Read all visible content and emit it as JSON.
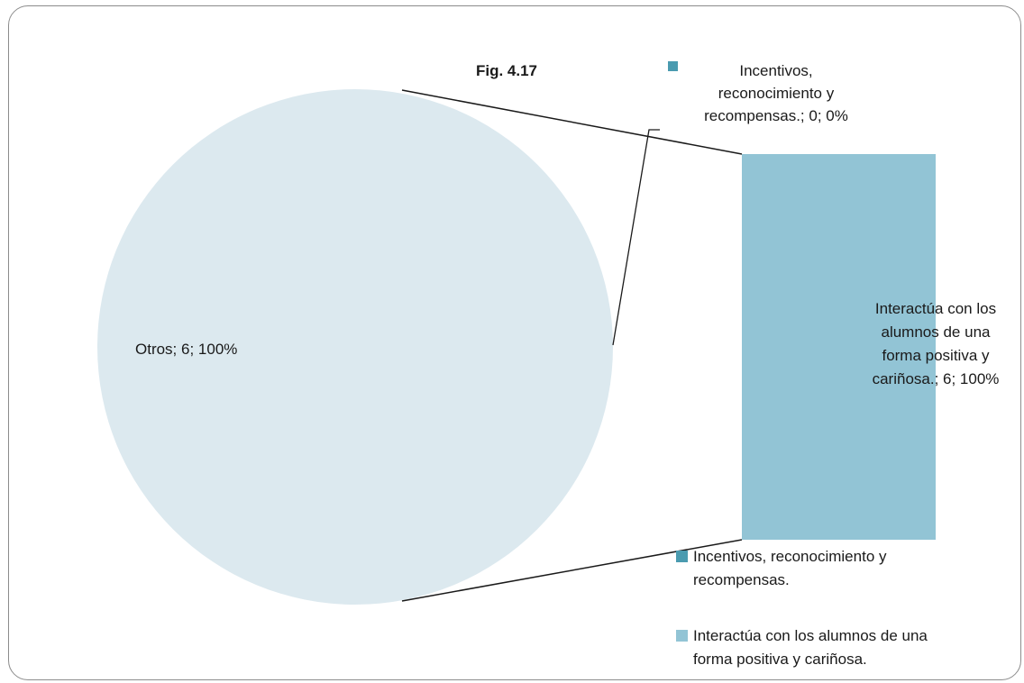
{
  "chart_data": {
    "type": "pie",
    "subtype": "bar-of-pie",
    "title": "Fig. 4.17",
    "pie": {
      "slices": [
        {
          "name": "Otros",
          "value": 6,
          "percent": "100%",
          "label": "Otros; 6; 100%",
          "color": "#dce9ef"
        }
      ]
    },
    "bar": {
      "segments": [
        {
          "name": "Incentivos, reconocimiento y recompensas.",
          "value": 0,
          "percent": "0%",
          "label_lines": [
            "Incentivos,",
            "reconocimiento y",
            "recompensas.; 0; 0%"
          ],
          "color": "#4a9bb0"
        },
        {
          "name": "Interactúa con los alumnos de una forma positiva y cariñosa.",
          "value": 6,
          "percent": "100%",
          "label_lines": [
            "Interactúa con los",
            "alumnos de una",
            "forma positiva y",
            "cariñosa.; 6; 100%"
          ],
          "color": "#92c4d5"
        }
      ]
    },
    "legend": {
      "position": "right",
      "entries": [
        {
          "lines": [
            "Incentivos, reconocimiento y",
            "recompensas."
          ],
          "color": "#4a9bb0"
        },
        {
          "lines": [
            "Interactúa con los alumnos de una",
            "forma positiva y cariñosa."
          ],
          "color": "#92c4d5"
        }
      ]
    },
    "colors": {
      "connector": "#1a1a1a",
      "frame": "#8c8c8c"
    }
  }
}
